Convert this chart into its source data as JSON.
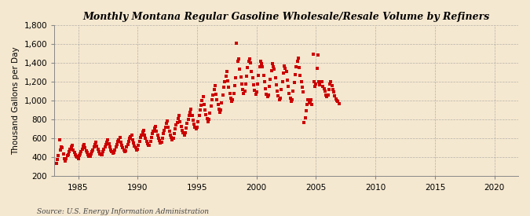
{
  "title": "Monthly Montana Regular Gasoline Wholesale/Resale Volume by Refiners",
  "ylabel": "Thousand Gallons per Day",
  "source": "Source: U.S. Energy Information Administration",
  "background_color": "#f5e8d0",
  "marker_color": "#cc0000",
  "xlim": [
    1983,
    2022
  ],
  "ylim": [
    200,
    1800
  ],
  "xticks": [
    1985,
    1990,
    1995,
    2000,
    2005,
    2010,
    2015,
    2020
  ],
  "yticks": [
    200,
    400,
    600,
    800,
    1000,
    1200,
    1400,
    1600,
    1800
  ],
  "data": [
    [
      1983.17,
      340
    ],
    [
      1983.25,
      380
    ],
    [
      1983.33,
      420
    ],
    [
      1983.42,
      590
    ],
    [
      1983.5,
      480
    ],
    [
      1983.58,
      510
    ],
    [
      1983.67,
      500
    ],
    [
      1983.75,
      440
    ],
    [
      1983.83,
      390
    ],
    [
      1983.92,
      360
    ],
    [
      1984.0,
      390
    ],
    [
      1984.08,
      420
    ],
    [
      1984.17,
      430
    ],
    [
      1984.25,
      460
    ],
    [
      1984.33,
      490
    ],
    [
      1984.42,
      510
    ],
    [
      1984.5,
      530
    ],
    [
      1984.58,
      480
    ],
    [
      1984.67,
      450
    ],
    [
      1984.75,
      430
    ],
    [
      1984.83,
      410
    ],
    [
      1984.92,
      400
    ],
    [
      1985.0,
      390
    ],
    [
      1985.08,
      420
    ],
    [
      1985.17,
      440
    ],
    [
      1985.25,
      460
    ],
    [
      1985.33,
      490
    ],
    [
      1985.42,
      520
    ],
    [
      1985.5,
      540
    ],
    [
      1985.58,
      500
    ],
    [
      1985.67,
      470
    ],
    [
      1985.75,
      450
    ],
    [
      1985.83,
      430
    ],
    [
      1985.92,
      415
    ],
    [
      1986.0,
      410
    ],
    [
      1986.08,
      440
    ],
    [
      1986.17,
      460
    ],
    [
      1986.25,
      480
    ],
    [
      1986.33,
      510
    ],
    [
      1986.42,
      540
    ],
    [
      1986.5,
      560
    ],
    [
      1986.58,
      520
    ],
    [
      1986.67,
      490
    ],
    [
      1986.75,
      460
    ],
    [
      1986.83,
      440
    ],
    [
      1986.92,
      430
    ],
    [
      1987.0,
      430
    ],
    [
      1987.08,
      460
    ],
    [
      1987.17,
      490
    ],
    [
      1987.25,
      510
    ],
    [
      1987.33,
      540
    ],
    [
      1987.42,
      560
    ],
    [
      1987.5,
      590
    ],
    [
      1987.58,
      545
    ],
    [
      1987.67,
      510
    ],
    [
      1987.75,
      480
    ],
    [
      1987.83,
      460
    ],
    [
      1987.92,
      445
    ],
    [
      1988.0,
      450
    ],
    [
      1988.08,
      480
    ],
    [
      1988.17,
      510
    ],
    [
      1988.25,
      540
    ],
    [
      1988.33,
      570
    ],
    [
      1988.42,
      590
    ],
    [
      1988.5,
      610
    ],
    [
      1988.58,
      565
    ],
    [
      1988.67,
      530
    ],
    [
      1988.75,
      500
    ],
    [
      1988.83,
      480
    ],
    [
      1988.92,
      460
    ],
    [
      1989.0,
      470
    ],
    [
      1989.08,
      510
    ],
    [
      1989.17,
      540
    ],
    [
      1989.25,
      570
    ],
    [
      1989.33,
      600
    ],
    [
      1989.42,
      620
    ],
    [
      1989.5,
      640
    ],
    [
      1989.58,
      590
    ],
    [
      1989.67,
      555
    ],
    [
      1989.75,
      520
    ],
    [
      1989.83,
      500
    ],
    [
      1989.92,
      480
    ],
    [
      1990.0,
      490
    ],
    [
      1990.08,
      530
    ],
    [
      1990.17,
      570
    ],
    [
      1990.25,
      610
    ],
    [
      1990.33,
      640
    ],
    [
      1990.42,
      670
    ],
    [
      1990.5,
      690
    ],
    [
      1990.58,
      640
    ],
    [
      1990.67,
      600
    ],
    [
      1990.75,
      570
    ],
    [
      1990.83,
      545
    ],
    [
      1990.92,
      525
    ],
    [
      1991.0,
      530
    ],
    [
      1991.08,
      570
    ],
    [
      1991.17,
      610
    ],
    [
      1991.25,
      650
    ],
    [
      1991.33,
      680
    ],
    [
      1991.42,
      710
    ],
    [
      1991.5,
      730
    ],
    [
      1991.58,
      680
    ],
    [
      1991.67,
      640
    ],
    [
      1991.75,
      600
    ],
    [
      1991.83,
      575
    ],
    [
      1991.92,
      555
    ],
    [
      1992.0,
      560
    ],
    [
      1992.08,
      600
    ],
    [
      1992.17,
      650
    ],
    [
      1992.25,
      690
    ],
    [
      1992.33,
      720
    ],
    [
      1992.42,
      760
    ],
    [
      1992.5,
      785
    ],
    [
      1992.58,
      720
    ],
    [
      1992.67,
      680
    ],
    [
      1992.75,
      640
    ],
    [
      1992.83,
      610
    ],
    [
      1992.92,
      590
    ],
    [
      1993.0,
      600
    ],
    [
      1993.08,
      650
    ],
    [
      1993.17,
      700
    ],
    [
      1993.25,
      740
    ],
    [
      1993.33,
      770
    ],
    [
      1993.42,
      810
    ],
    [
      1993.5,
      840
    ],
    [
      1993.58,
      775
    ],
    [
      1993.67,
      730
    ],
    [
      1993.75,
      690
    ],
    [
      1993.83,
      660
    ],
    [
      1993.92,
      640
    ],
    [
      1994.0,
      660
    ],
    [
      1994.08,
      710
    ],
    [
      1994.17,
      760
    ],
    [
      1994.25,
      800
    ],
    [
      1994.33,
      840
    ],
    [
      1994.42,
      880
    ],
    [
      1994.5,
      910
    ],
    [
      1994.58,
      840
    ],
    [
      1994.67,
      790
    ],
    [
      1994.75,
      755
    ],
    [
      1994.83,
      720
    ],
    [
      1994.92,
      700
    ],
    [
      1995.0,
      720
    ],
    [
      1995.08,
      780
    ],
    [
      1995.17,
      840
    ],
    [
      1995.25,
      900
    ],
    [
      1995.33,
      950
    ],
    [
      1995.42,
      1000
    ],
    [
      1995.5,
      1040
    ],
    [
      1995.58,
      960
    ],
    [
      1995.67,
      900
    ],
    [
      1995.75,
      855
    ],
    [
      1995.83,
      810
    ],
    [
      1995.92,
      780
    ],
    [
      1996.0,
      800
    ],
    [
      1996.08,
      870
    ],
    [
      1996.17,
      940
    ],
    [
      1996.25,
      1010
    ],
    [
      1996.33,
      1060
    ],
    [
      1996.42,
      1120
    ],
    [
      1996.5,
      1160
    ],
    [
      1996.58,
      1070
    ],
    [
      1996.67,
      1010
    ],
    [
      1996.75,
      960
    ],
    [
      1996.83,
      910
    ],
    [
      1996.92,
      880
    ],
    [
      1997.0,
      900
    ],
    [
      1997.08,
      980
    ],
    [
      1997.17,
      1060
    ],
    [
      1997.25,
      1140
    ],
    [
      1997.33,
      1200
    ],
    [
      1997.42,
      1260
    ],
    [
      1997.5,
      1310
    ],
    [
      1997.58,
      1210
    ],
    [
      1997.67,
      1140
    ],
    [
      1997.75,
      1080
    ],
    [
      1997.83,
      1030
    ],
    [
      1997.92,
      990
    ],
    [
      1998.0,
      1010
    ],
    [
      1998.08,
      1080
    ],
    [
      1998.17,
      1160
    ],
    [
      1998.25,
      1240
    ],
    [
      1998.33,
      1610
    ],
    [
      1998.42,
      1420
    ],
    [
      1998.5,
      1440
    ],
    [
      1998.58,
      1330
    ],
    [
      1998.67,
      1250
    ],
    [
      1998.75,
      1180
    ],
    [
      1998.83,
      1120
    ],
    [
      1998.92,
      1080
    ],
    [
      1999.0,
      1100
    ],
    [
      1999.08,
      1180
    ],
    [
      1999.17,
      1260
    ],
    [
      1999.25,
      1350
    ],
    [
      1999.33,
      1420
    ],
    [
      1999.42,
      1440
    ],
    [
      1999.5,
      1400
    ],
    [
      1999.58,
      1310
    ],
    [
      1999.67,
      1240
    ],
    [
      1999.75,
      1170
    ],
    [
      1999.83,
      1110
    ],
    [
      1999.92,
      1070
    ],
    [
      2000.0,
      1090
    ],
    [
      2000.08,
      1180
    ],
    [
      2000.17,
      1270
    ],
    [
      2000.25,
      1360
    ],
    [
      2000.33,
      1420
    ],
    [
      2000.42,
      1390
    ],
    [
      2000.5,
      1360
    ],
    [
      2000.58,
      1270
    ],
    [
      2000.67,
      1200
    ],
    [
      2000.75,
      1130
    ],
    [
      2000.83,
      1070
    ],
    [
      2000.92,
      1040
    ],
    [
      2001.0,
      1060
    ],
    [
      2001.08,
      1150
    ],
    [
      2001.17,
      1230
    ],
    [
      2001.25,
      1320
    ],
    [
      2001.33,
      1390
    ],
    [
      2001.42,
      1360
    ],
    [
      2001.5,
      1330
    ],
    [
      2001.58,
      1240
    ],
    [
      2001.67,
      1170
    ],
    [
      2001.75,
      1100
    ],
    [
      2001.83,
      1050
    ],
    [
      2001.92,
      1010
    ],
    [
      2002.0,
      1030
    ],
    [
      2002.08,
      1120
    ],
    [
      2002.17,
      1200
    ],
    [
      2002.25,
      1290
    ],
    [
      2002.33,
      1370
    ],
    [
      2002.42,
      1340
    ],
    [
      2002.5,
      1310
    ],
    [
      2002.58,
      1220
    ],
    [
      2002.67,
      1150
    ],
    [
      2002.75,
      1080
    ],
    [
      2002.83,
      1030
    ],
    [
      2002.92,
      990
    ],
    [
      2003.0,
      1010
    ],
    [
      2003.08,
      1100
    ],
    [
      2003.17,
      1190
    ],
    [
      2003.25,
      1280
    ],
    [
      2003.33,
      1360
    ],
    [
      2003.42,
      1420
    ],
    [
      2003.5,
      1450
    ],
    [
      2003.58,
      1350
    ],
    [
      2003.67,
      1270
    ],
    [
      2003.75,
      1200
    ],
    [
      2003.83,
      1140
    ],
    [
      2003.92,
      1090
    ],
    [
      2004.0,
      770
    ],
    [
      2004.08,
      820
    ],
    [
      2004.17,
      890
    ],
    [
      2004.25,
      960
    ],
    [
      2004.33,
      1010
    ],
    [
      2004.42,
      980
    ],
    [
      2004.5,
      990
    ],
    [
      2004.58,
      1010
    ],
    [
      2004.67,
      960
    ],
    [
      2004.75,
      1490
    ],
    [
      2004.83,
      1200
    ],
    [
      2004.92,
      1150
    ],
    [
      2005.0,
      1180
    ],
    [
      2005.08,
      1340
    ],
    [
      2005.17,
      1480
    ],
    [
      2005.25,
      1200
    ],
    [
      2005.33,
      1170
    ],
    [
      2005.42,
      1200
    ],
    [
      2005.5,
      1200
    ],
    [
      2005.58,
      1150
    ],
    [
      2005.67,
      1130
    ],
    [
      2005.75,
      1100
    ],
    [
      2005.83,
      1060
    ],
    [
      2005.92,
      1040
    ],
    [
      2006.0,
      1060
    ],
    [
      2006.08,
      1120
    ],
    [
      2006.17,
      1180
    ],
    [
      2006.25,
      1200
    ],
    [
      2006.33,
      1160
    ],
    [
      2006.42,
      1120
    ],
    [
      2006.5,
      1090
    ],
    [
      2006.58,
      1050
    ],
    [
      2006.67,
      1020
    ],
    [
      2006.75,
      1000
    ],
    [
      2006.83,
      990
    ],
    [
      2006.92,
      970
    ]
  ]
}
